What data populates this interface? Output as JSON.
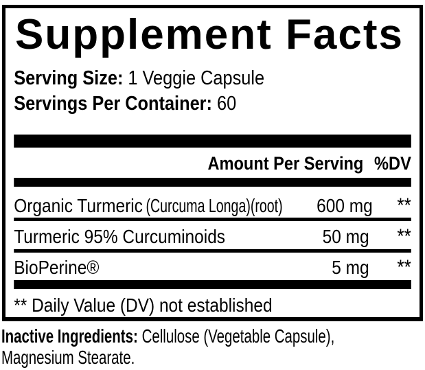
{
  "panel": {
    "title": "Supplement Facts",
    "serving": {
      "size_label": "Serving Size:",
      "size_value": "1 Veggie Capsule",
      "per_container_label": "Servings Per Container:",
      "per_container_value": "60"
    },
    "columns": {
      "amount": "Amount Per Serving",
      "dv": "%DV"
    },
    "rows": [
      {
        "name": "Organic Turmeric",
        "detail": "(Curcuma Longa)(root)",
        "amount": "600 mg",
        "dv": "**"
      },
      {
        "name": "Turmeric 95% Curcuminoids",
        "detail": "",
        "amount": "50 mg",
        "dv": "**"
      },
      {
        "name": "BioPerine®",
        "detail": "",
        "amount": "5 mg",
        "dv": "**"
      }
    ],
    "footnote": "** Daily Value (DV) not established"
  },
  "inactive": {
    "label": "Inactive Ingredients:",
    "line1_rest": "Cellulose (Vegetable Capsule),",
    "line2": "Magnesium Stearate."
  },
  "colors": {
    "text": "#000000",
    "background": "#ffffff"
  }
}
